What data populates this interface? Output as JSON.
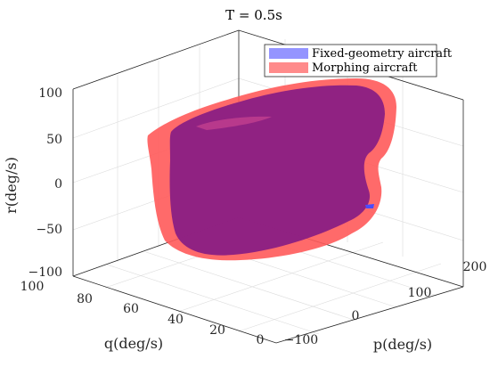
{
  "chart_data": {
    "type": "3d-surface",
    "title": "T = 0.5s",
    "xlabel": "p(deg/s)",
    "ylabel": "q(deg/s)",
    "zlabel": "r(deg/s)",
    "xlim": [
      -100,
      200
    ],
    "ylim": [
      0,
      100
    ],
    "zlim": [
      -100,
      100
    ],
    "xticks": [
      "−100",
      "0",
      "100",
      "200"
    ],
    "yticks": [
      "100",
      "80",
      "60",
      "40",
      "20",
      "0"
    ],
    "zticks": [
      "100",
      "50",
      "0",
      "−50",
      "−100"
    ],
    "grid": true,
    "legend_position": "top-right",
    "series": [
      {
        "name": "Fixed-geometry aircraft",
        "color": "#6666ff"
      },
      {
        "name": "Morphing aircraft",
        "color": "#ff5a5a"
      }
    ]
  }
}
